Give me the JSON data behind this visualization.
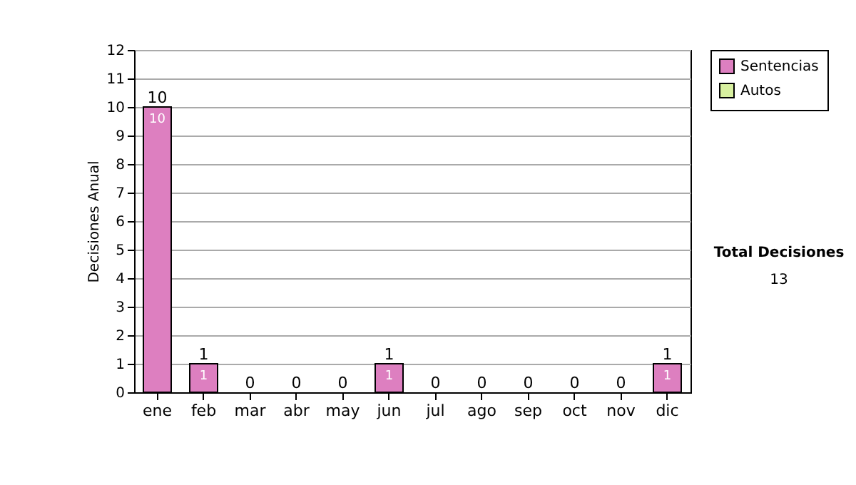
{
  "chart_data": {
    "type": "bar",
    "stacked": true,
    "ylabel": "Decisiones Anual",
    "categories": [
      "ene",
      "feb",
      "mar",
      "abr",
      "may",
      "jun",
      "jul",
      "ago",
      "sep",
      "oct",
      "nov",
      "dic"
    ],
    "series": [
      {
        "name": "Sentencias",
        "color": "#dd7fc0",
        "values": [
          10,
          1,
          0,
          0,
          0,
          1,
          0,
          0,
          0,
          0,
          0,
          1
        ],
        "value_labels": [
          "10",
          "1",
          null,
          null,
          null,
          "1",
          null,
          null,
          null,
          null,
          null,
          "1"
        ]
      },
      {
        "name": "Autos",
        "color": "#d8f0a0",
        "values": [
          0,
          0,
          0,
          0,
          0,
          0,
          0,
          0,
          0,
          0,
          0,
          0
        ]
      }
    ],
    "totals": [
      "10",
      "1",
      "0",
      "0",
      "0",
      "1",
      "0",
      "0",
      "0",
      "0",
      "0",
      "1"
    ],
    "ylim": [
      0,
      12
    ],
    "yticks": [
      0,
      1,
      2,
      3,
      4,
      5,
      6,
      7,
      8,
      9,
      10,
      11,
      12
    ],
    "grid": "y",
    "legend": "right",
    "annotations": [
      "Total Decisiones",
      "13"
    ]
  }
}
